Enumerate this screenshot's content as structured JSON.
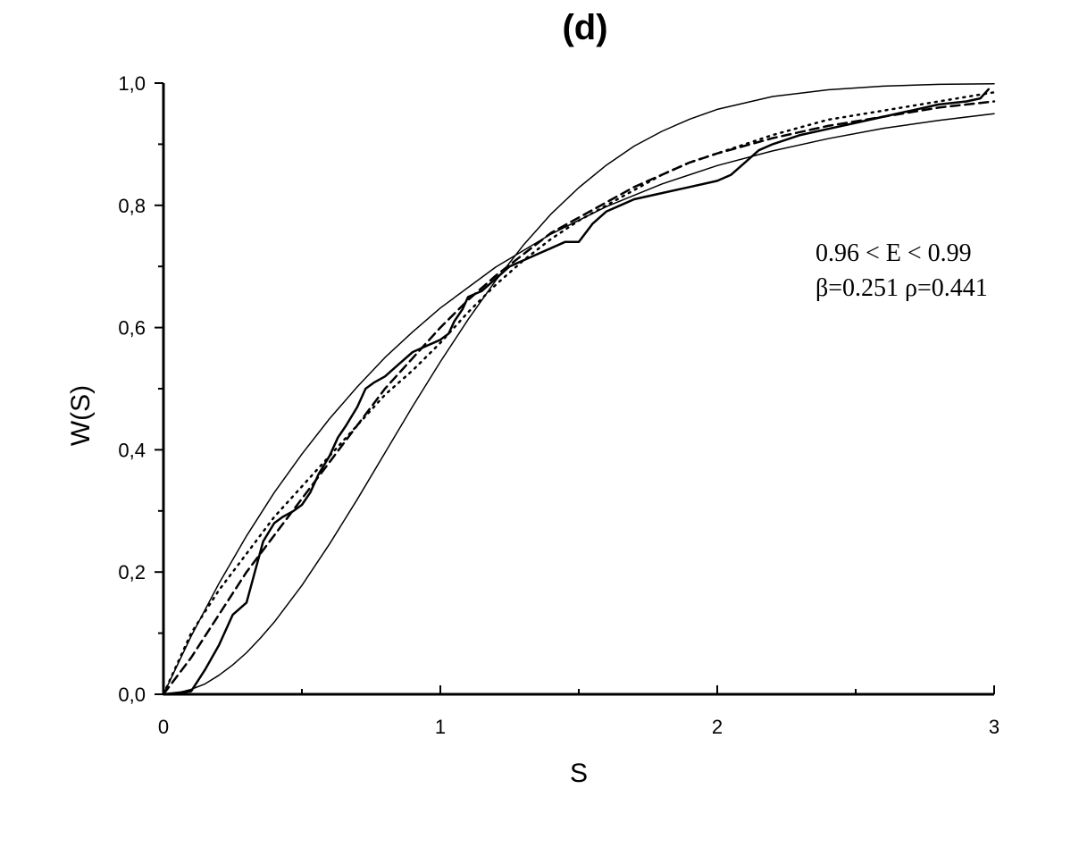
{
  "chart_data": {
    "type": "line",
    "title": "(d)",
    "xlabel": "S",
    "ylabel": "W(S)",
    "xlim": [
      0,
      3
    ],
    "ylim": [
      0,
      1.0
    ],
    "x_ticks": [
      {
        "value": 0,
        "label": "0"
      },
      {
        "value": 1,
        "label": "1"
      },
      {
        "value": 2,
        "label": "2"
      },
      {
        "value": 3,
        "label": "3"
      }
    ],
    "y_ticks": [
      {
        "value": 0.0,
        "label": "0,0"
      },
      {
        "value": 0.2,
        "label": "0,2"
      },
      {
        "value": 0.4,
        "label": "0,4"
      },
      {
        "value": 0.6,
        "label": "0,6"
      },
      {
        "value": 0.8,
        "label": "0,8"
      },
      {
        "value": 1.0,
        "label": "1,0"
      }
    ],
    "annotations": [
      "0.96 < E < 0.99",
      "β=0.251 ρ=0.441"
    ],
    "series": [
      {
        "style": "solid-thin",
        "x": [
          0,
          0.05,
          0.1,
          0.15,
          0.2,
          0.25,
          0.3,
          0.35,
          0.4,
          0.5,
          0.6,
          0.7,
          0.8,
          0.9,
          1.0,
          1.1,
          1.2,
          1.3,
          1.4,
          1.5,
          1.6,
          1.7,
          1.8,
          1.9,
          2.0,
          2.2,
          2.4,
          2.6,
          2.8,
          3.0
        ],
        "values": [
          0,
          0.002,
          0.008,
          0.017,
          0.031,
          0.048,
          0.068,
          0.092,
          0.118,
          0.178,
          0.246,
          0.319,
          0.395,
          0.471,
          0.544,
          0.613,
          0.677,
          0.735,
          0.786,
          0.829,
          0.866,
          0.897,
          0.921,
          0.941,
          0.957,
          0.978,
          0.989,
          0.995,
          0.998,
          0.999
        ]
      },
      {
        "style": "solid-thin",
        "x": [
          0,
          0.1,
          0.2,
          0.3,
          0.4,
          0.5,
          0.6,
          0.7,
          0.8,
          0.9,
          1.0,
          1.2,
          1.4,
          1.6,
          1.8,
          2.0,
          2.2,
          2.4,
          2.6,
          2.8,
          3.0
        ],
        "values": [
          0,
          0.095,
          0.181,
          0.259,
          0.33,
          0.393,
          0.451,
          0.503,
          0.551,
          0.593,
          0.632,
          0.699,
          0.753,
          0.798,
          0.835,
          0.865,
          0.889,
          0.909,
          0.926,
          0.939,
          0.95
        ]
      },
      {
        "style": "staircase",
        "x": [
          0,
          0.1,
          0.15,
          0.2,
          0.22,
          0.25,
          0.3,
          0.33,
          0.36,
          0.4,
          0.43,
          0.47,
          0.5,
          0.53,
          0.56,
          0.6,
          0.63,
          0.66,
          0.7,
          0.73,
          0.76,
          0.8,
          0.85,
          0.9,
          0.95,
          1.0,
          1.03,
          1.05,
          1.08,
          1.1,
          1.15,
          1.2,
          1.25,
          1.3,
          1.35,
          1.4,
          1.45,
          1.5,
          1.55,
          1.6,
          1.65,
          1.7,
          1.8,
          1.9,
          2.0,
          2.05,
          2.1,
          2.15,
          2.2,
          2.3,
          2.4,
          2.5,
          2.6,
          2.7,
          2.8,
          2.9,
          2.95,
          2.98
        ],
        "values": [
          0,
          0.005,
          0.04,
          0.08,
          0.1,
          0.13,
          0.15,
          0.2,
          0.25,
          0.28,
          0.29,
          0.3,
          0.31,
          0.33,
          0.36,
          0.39,
          0.42,
          0.44,
          0.47,
          0.5,
          0.51,
          0.52,
          0.54,
          0.56,
          0.57,
          0.58,
          0.59,
          0.61,
          0.63,
          0.65,
          0.66,
          0.68,
          0.7,
          0.71,
          0.72,
          0.73,
          0.74,
          0.74,
          0.77,
          0.79,
          0.8,
          0.81,
          0.82,
          0.83,
          0.84,
          0.85,
          0.87,
          0.89,
          0.9,
          0.915,
          0.925,
          0.935,
          0.945,
          0.955,
          0.965,
          0.97,
          0.975,
          0.99
        ]
      },
      {
        "style": "dashed",
        "x": [
          0,
          0.1,
          0.2,
          0.3,
          0.4,
          0.5,
          0.6,
          0.7,
          0.8,
          0.9,
          1.0,
          1.1,
          1.2,
          1.3,
          1.4,
          1.5,
          1.6,
          1.7,
          1.8,
          1.9,
          2.0,
          2.2,
          2.4,
          2.6,
          2.8,
          3.0
        ],
        "values": [
          0,
          0.06,
          0.13,
          0.2,
          0.26,
          0.32,
          0.38,
          0.44,
          0.5,
          0.55,
          0.6,
          0.645,
          0.685,
          0.72,
          0.755,
          0.78,
          0.805,
          0.83,
          0.85,
          0.87,
          0.885,
          0.91,
          0.93,
          0.945,
          0.96,
          0.97
        ]
      },
      {
        "style": "dotted",
        "x": [
          0,
          0.1,
          0.2,
          0.3,
          0.4,
          0.5,
          0.6,
          0.7,
          0.8,
          0.9,
          1.0,
          1.1,
          1.2,
          1.3,
          1.4,
          1.5,
          1.6,
          1.7,
          1.8,
          1.9,
          2.0,
          2.2,
          2.4,
          2.6,
          2.8,
          3.0
        ],
        "values": [
          0,
          0.1,
          0.17,
          0.23,
          0.29,
          0.34,
          0.39,
          0.44,
          0.49,
          0.53,
          0.575,
          0.625,
          0.67,
          0.71,
          0.745,
          0.775,
          0.8,
          0.825,
          0.85,
          0.87,
          0.885,
          0.915,
          0.94,
          0.955,
          0.97,
          0.985
        ]
      }
    ]
  }
}
